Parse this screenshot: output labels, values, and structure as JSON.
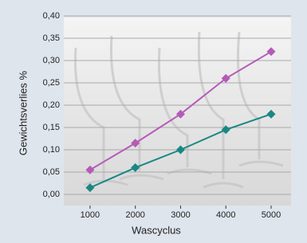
{
  "chart_data": {
    "type": "line",
    "x_label": "Wascyclus",
    "y_label": "Gewichtsverlies %",
    "x": [
      1000,
      2000,
      3000,
      4000,
      5000
    ],
    "series": [
      {
        "color": "#b55ab8",
        "values": [
          0.055,
          0.115,
          0.18,
          0.26,
          0.32
        ]
      },
      {
        "color": "#1a8784",
        "values": [
          0.015,
          0.06,
          0.1,
          0.145,
          0.18
        ]
      }
    ],
    "xlim": [
      420,
      5440
    ],
    "xticks": [
      1000,
      2000,
      3000,
      4000,
      5000
    ],
    "ylim": [
      0,
      0.4
    ],
    "yticks": [
      {
        "value": 0,
        "label": "0,00"
      },
      {
        "value": 0.05,
        "label": "0,05"
      },
      {
        "value": 0.1,
        "label": "0,10"
      },
      {
        "value": 0.15,
        "label": "0,15"
      },
      {
        "value": 0.2,
        "label": "0,20"
      },
      {
        "value": 0.25,
        "label": "0,25"
      },
      {
        "value": 0.3,
        "label": "0,30"
      },
      {
        "value": 0.35,
        "label": "0,35"
      },
      {
        "value": 0.4,
        "label": "0,40"
      }
    ],
    "grid": true
  }
}
